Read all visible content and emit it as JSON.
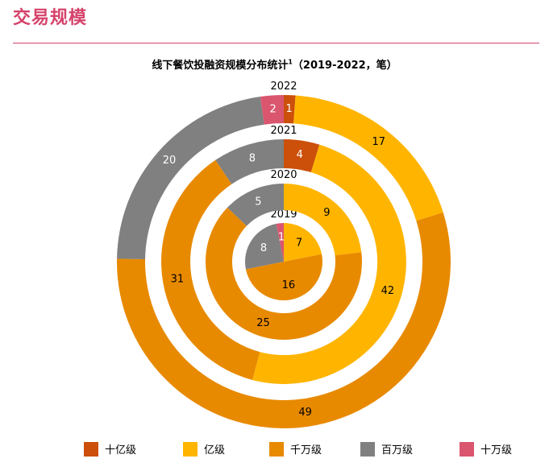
{
  "header": {
    "title": "交易规模"
  },
  "chart_data": {
    "type": "pie",
    "title": "线下餐饮投融资规模分布统计",
    "title_superscript": "1",
    "title_suffix": "（2019-2022，笔）",
    "categories": [
      "十亿级",
      "亿级",
      "千万级",
      "百万级",
      "十万级"
    ],
    "colors": {
      "十亿级": "#cc4f0a",
      "亿级": "#ffb500",
      "千万级": "#e88a00",
      "百万级": "#808080",
      "十万级": "#d9566e"
    },
    "rings": [
      {
        "year": "2019",
        "values": {
          "十亿级": 0,
          "亿级": 7,
          "千万级": 16,
          "百万级": 8,
          "十万级": 1
        }
      },
      {
        "year": "2020",
        "values": {
          "十亿级": 0,
          "亿级": 9,
          "千万级": 25,
          "百万级": 5,
          "十万级": 0
        }
      },
      {
        "year": "2021",
        "values": {
          "十亿级": 4,
          "亿级": 42,
          "千万级": 31,
          "百万级": 8,
          "十万级": 0
        }
      },
      {
        "year": "2022",
        "values": {
          "十亿级": 1,
          "亿级": 17,
          "千万级": 49,
          "百万级": 20,
          "十万级": 2
        }
      }
    ],
    "legend_position": "bottom"
  }
}
